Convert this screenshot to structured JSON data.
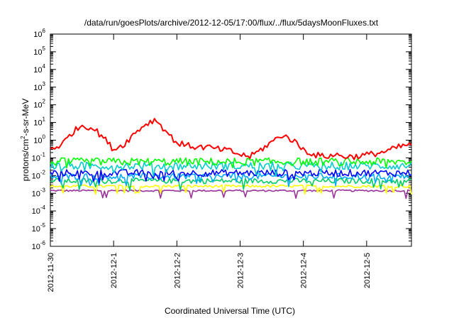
{
  "chart_data": {
    "type": "line",
    "title": "/data/run/goesPlots/archive/2012-12-05/17:00/flux/../flux/5daysMoonFluxes.txt",
    "xlabel": "Coordinated Universal Time (UTC)",
    "ylabel": "protons/cm²-s-sr-MeV",
    "ylabel_parts": {
      "pre": "protons/cm",
      "sup": "2",
      "post": "-s-sr-MeV"
    },
    "yscale": "log",
    "ylim": [
      1e-06,
      1000000.0
    ],
    "yticks": [
      {
        "base": "10",
        "exp": "6"
      },
      {
        "base": "10",
        "exp": "5"
      },
      {
        "base": "10",
        "exp": "4"
      },
      {
        "base": "10",
        "exp": "3"
      },
      {
        "base": "10",
        "exp": "2"
      },
      {
        "base": "10",
        "exp": "1"
      },
      {
        "base": "10",
        "exp": "0"
      },
      {
        "base": "10",
        "exp": "-1"
      },
      {
        "base": "10",
        "exp": "-2"
      },
      {
        "base": "10",
        "exp": "-3"
      },
      {
        "base": "10",
        "exp": "-4"
      },
      {
        "base": "10",
        "exp": "-5"
      },
      {
        "base": "10",
        "exp": "-6"
      }
    ],
    "xlim": [
      "2012-11-30",
      "2012-12-05T17:00"
    ],
    "xticks": [
      "2012-11-30",
      "2012-12-1",
      "2012-12-2",
      "2012-12-3",
      "2012-12-4",
      "2012-12-5"
    ],
    "grid": false,
    "legend": "none",
    "series": [
      {
        "color": "#ff0000",
        "x": [
          "2012-11-30T00:00",
          "2012-11-30T04:00",
          "2012-11-30T08:00",
          "2012-11-30T12:00",
          "2012-11-30T16:00",
          "2012-11-30T20:00",
          "2012-12-01T00:00",
          "2012-12-01T04:00",
          "2012-12-01T08:00",
          "2012-12-01T12:00",
          "2012-12-01T16:00",
          "2012-12-01T20:00",
          "2012-12-02T00:00",
          "2012-12-02T04:00",
          "2012-12-02T08:00",
          "2012-12-02T12:00",
          "2012-12-02T16:00",
          "2012-12-02T20:00",
          "2012-12-03T00:00",
          "2012-12-03T04:00",
          "2012-12-03T08:00",
          "2012-12-03T12:00",
          "2012-12-03T16:00",
          "2012-12-03T20:00",
          "2012-12-04T00:00",
          "2012-12-04T04:00",
          "2012-12-04T08:00",
          "2012-12-04T12:00",
          "2012-12-04T16:00",
          "2012-12-04T20:00",
          "2012-12-05T00:00",
          "2012-12-05T04:00",
          "2012-12-05T08:00",
          "2012-12-05T12:00",
          "2012-12-05T17:00"
        ],
        "y": [
          0.35,
          0.5,
          2.5,
          7,
          5,
          1.5,
          0.3,
          0.6,
          2.5,
          8,
          15,
          3,
          0.7,
          0.5,
          0.4,
          0.4,
          0.3,
          0.25,
          0.15,
          0.12,
          0.3,
          0.8,
          2,
          1,
          0.3,
          0.15,
          0.12,
          0.15,
          0.12,
          0.12,
          0.15,
          0.18,
          0.25,
          0.4,
          0.6
        ]
      },
      {
        "color": "#00ff00",
        "base": 0.06,
        "spread": 0.45
      },
      {
        "color": "#00cccc",
        "base": 0.035,
        "spread": 0.45
      },
      {
        "color": "#0000ff",
        "base": 0.014,
        "spread": 0.4
      },
      {
        "color": "#00aaff",
        "base": 0.009,
        "spread": 0.35
      },
      {
        "color": "#00cc66",
        "base": 0.005,
        "spread": 0.3
      },
      {
        "color": "#ffff00",
        "base": 0.0025,
        "spread": 0.15
      },
      {
        "color": "#993399",
        "base": 0.0014,
        "spread": 0.1
      }
    ]
  }
}
